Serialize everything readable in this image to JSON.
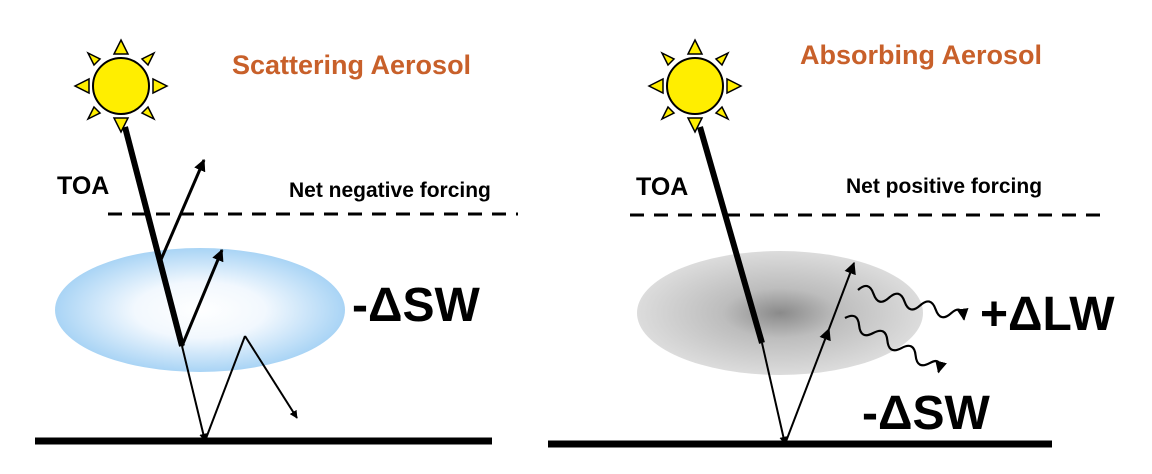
{
  "left_panel": {
    "title": "Scattering Aerosol",
    "toa_label": "TOA",
    "forcing_label": "Net negative forcing",
    "sw_label": "-ΔSW"
  },
  "right_panel": {
    "title": "Absorbing Aerosol",
    "toa_label": "TOA",
    "forcing_label": "Net positive forcing",
    "lw_label": "+ΔLW",
    "sw_label": "-ΔSW"
  },
  "colors": {
    "title": "#c8602a",
    "sun_fill": "#ffee00",
    "scattering_cloud": "#a9d4f5",
    "absorbing_cloud": "#cfcfcf"
  }
}
